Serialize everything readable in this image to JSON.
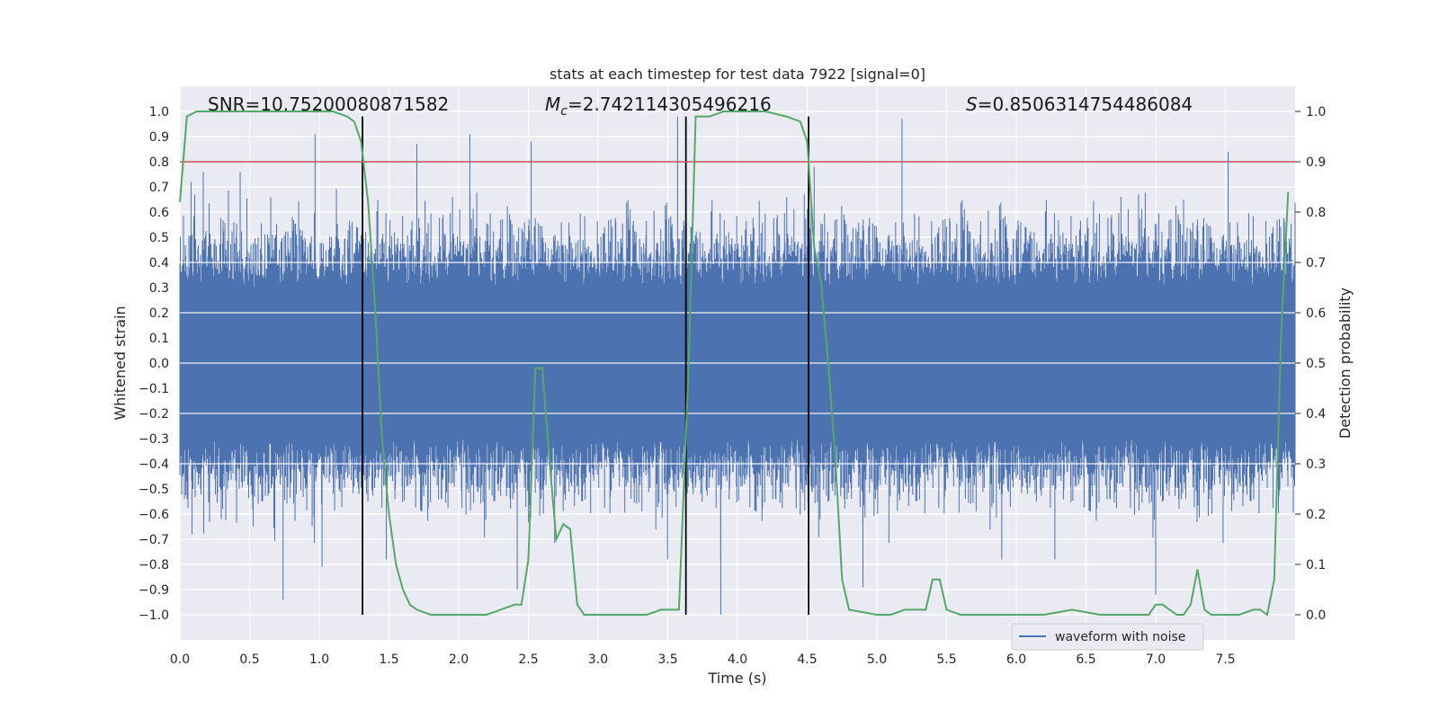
{
  "chart_data": {
    "type": "line",
    "title": "stats at each timestep for test data 7922 [signal=0]",
    "xlabel": "Time (s)",
    "ylabel": "Whitened strain",
    "y2label": "Detection probability",
    "xlim": [
      0.0,
      8.0
    ],
    "ylim": [
      -1.1,
      1.1
    ],
    "y2lim": [
      -0.05,
      1.05
    ],
    "xticks": [
      0.0,
      0.5,
      1.0,
      1.5,
      2.0,
      2.5,
      3.0,
      3.5,
      4.0,
      4.5,
      5.0,
      5.5,
      6.0,
      6.5,
      7.0,
      7.5
    ],
    "yticks": [
      -1.0,
      -0.9,
      -0.8,
      -0.7,
      -0.6,
      -0.5,
      -0.4,
      -0.3,
      -0.2,
      -0.1,
      0.0,
      0.1,
      0.2,
      0.3,
      0.4,
      0.5,
      0.6,
      0.7,
      0.8,
      0.9,
      1.0
    ],
    "y2ticks": [
      0.0,
      0.1,
      0.2,
      0.3,
      0.4,
      0.5,
      0.6,
      0.7,
      0.8,
      0.9,
      1.0
    ],
    "grid": true,
    "legend_position": "bottom-right",
    "annotations": {
      "snr": "SNR=10.75200080871582",
      "mc_symbol": "M",
      "mc_sub": "c",
      "mc_value": "=2.742114305496216",
      "s_symbol": "S",
      "s_value": "=0.8506314754486084"
    },
    "series": [
      {
        "name": "waveform with noise",
        "axis": "left",
        "color": "#4c72b0",
        "description_type": "noise",
        "envelope_peaks_top": [
          [
            0.08,
            0.72
          ],
          [
            0.97,
            0.91
          ],
          [
            1.7,
            0.87
          ],
          [
            2.08,
            0.91
          ],
          [
            2.52,
            0.88
          ],
          [
            3.57,
            0.98
          ],
          [
            4.55,
            0.78
          ],
          [
            5.18,
            0.97
          ],
          [
            7.2,
            0.65
          ],
          [
            7.52,
            0.84
          ]
        ],
        "envelope_peaks_bottom": [
          [
            0.74,
            -0.94
          ],
          [
            1.02,
            -0.81
          ],
          [
            2.42,
            -0.9
          ],
          [
            3.88,
            -1.0
          ],
          [
            4.9,
            -0.89
          ],
          [
            7.0,
            -0.92
          ]
        ]
      },
      {
        "name": "",
        "axis": "right",
        "color": "#55a868",
        "x": [
          0.0,
          0.05,
          0.12,
          0.3,
          0.5,
          0.8,
          1.0,
          1.1,
          1.2,
          1.25,
          1.3,
          1.35,
          1.4,
          1.45,
          1.5,
          1.55,
          1.6,
          1.65,
          1.7,
          1.8,
          2.0,
          2.2,
          2.3,
          2.4,
          2.45,
          2.5,
          2.55,
          2.6,
          2.65,
          2.7,
          2.75,
          2.8,
          2.85,
          2.9,
          3.0,
          3.2,
          3.35,
          3.45,
          3.55,
          3.58,
          3.65,
          3.7,
          3.75,
          3.8,
          3.9,
          4.0,
          4.2,
          4.35,
          4.45,
          4.5,
          4.55,
          4.6,
          4.65,
          4.7,
          4.75,
          4.8,
          5.0,
          5.1,
          5.2,
          5.3,
          5.35,
          5.4,
          5.45,
          5.5,
          5.6,
          5.8,
          6.0,
          6.2,
          6.4,
          6.6,
          6.8,
          6.95,
          7.0,
          7.05,
          7.1,
          7.15,
          7.2,
          7.25,
          7.3,
          7.35,
          7.4,
          7.5,
          7.6,
          7.7,
          7.75,
          7.8,
          7.85,
          7.9,
          7.95
        ],
        "values": [
          0.82,
          0.99,
          1.0,
          1.0,
          1.0,
          1.0,
          1.0,
          1.0,
          0.99,
          0.98,
          0.94,
          0.82,
          0.61,
          0.35,
          0.2,
          0.1,
          0.05,
          0.02,
          0.01,
          0.0,
          0.0,
          0.0,
          0.01,
          0.02,
          0.02,
          0.11,
          0.49,
          0.49,
          0.31,
          0.15,
          0.18,
          0.17,
          0.02,
          0.0,
          0.0,
          0.0,
          0.0,
          0.01,
          0.01,
          0.01,
          0.5,
          0.99,
          0.99,
          0.99,
          1.0,
          1.0,
          1.0,
          0.99,
          0.98,
          0.94,
          0.73,
          0.66,
          0.5,
          0.32,
          0.07,
          0.01,
          0.0,
          0.0,
          0.01,
          0.01,
          0.01,
          0.07,
          0.07,
          0.01,
          0.0,
          0.0,
          0.0,
          0.0,
          0.01,
          0.0,
          0.0,
          0.0,
          0.02,
          0.02,
          0.01,
          0.0,
          0.0,
          0.02,
          0.09,
          0.01,
          0.0,
          0.0,
          0.0,
          0.01,
          0.01,
          0.0,
          0.07,
          0.56,
          0.84
        ]
      },
      {
        "name": "",
        "axis": "right",
        "color": "#c44e52",
        "type": "hline",
        "value": 0.9
      }
    ],
    "vlines": {
      "color": "#000000",
      "x": [
        1.31,
        3.63,
        4.51
      ]
    }
  }
}
